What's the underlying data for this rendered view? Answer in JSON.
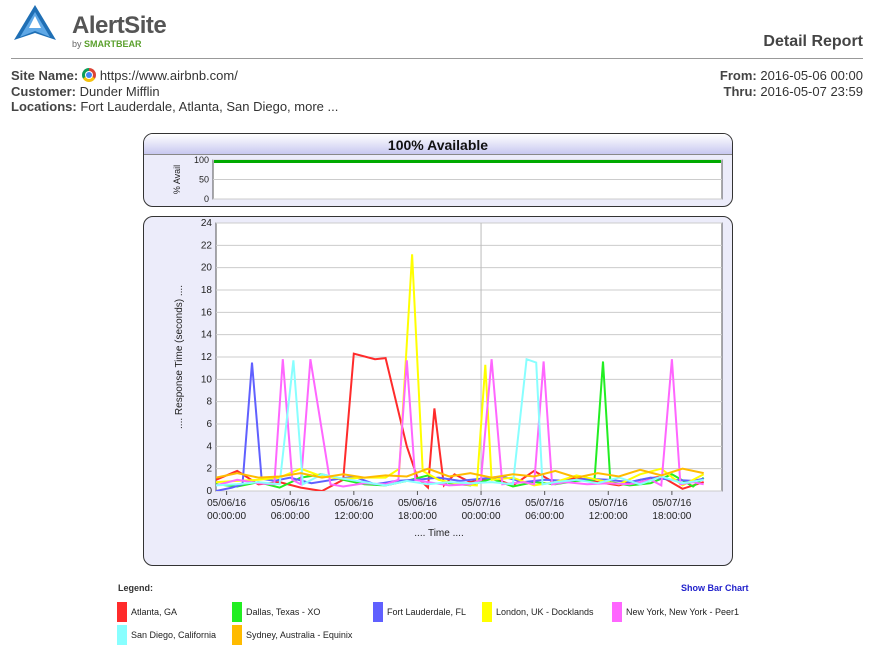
{
  "logo": {
    "brand": "AlertSite",
    "by_prefix": "by ",
    "by_name": "SMARTBEAR"
  },
  "report_title": "Detail Report",
  "site": {
    "site_label": "Site Name:",
    "site_value": "https://www.airbnb.com/",
    "customer_label": "Customer:",
    "customer_value": "Dunder Mifflin",
    "locations_label": "Locations:",
    "locations_value": "Fort Lauderdale, Atlanta, San Diego, more ..."
  },
  "period": {
    "from_label": "From:",
    "from_value": "2016-05-06 00:00",
    "thru_label": "Thru:",
    "thru_value": "2016-05-07 23:59"
  },
  "colors": {
    "accent": "#2222cc",
    "availability": "#00aa00"
  },
  "legend": {
    "title": "Legend:",
    "show_bar_chart": "Show Bar Chart"
  },
  "chart_data": [
    {
      "type": "area",
      "title": "100% Available",
      "ylabel": "% Avail",
      "yticks": [
        0,
        50,
        100
      ],
      "ylim": [
        0,
        100
      ],
      "series": [
        {
          "values": [
            100,
            100
          ]
        }
      ]
    },
    {
      "type": "line",
      "xlabel": ".... Time ....",
      "ylabel": ".... Response Time (seconds) ....",
      "ylim": [
        0,
        24
      ],
      "yticks": [
        0,
        2,
        4,
        6,
        8,
        10,
        12,
        14,
        16,
        18,
        20,
        22,
        24
      ],
      "xlim": [
        -1,
        41
      ],
      "xticks": [
        {
          "x": 0,
          "label": "05/06/16",
          "sub": "00:00:00"
        },
        {
          "x": 6,
          "label": "05/06/16",
          "sub": "06:00:00"
        },
        {
          "x": 12,
          "label": "05/06/16",
          "sub": "12:00:00"
        },
        {
          "x": 18,
          "label": "05/06/16",
          "sub": "18:00:00"
        },
        {
          "x": 24,
          "label": "05/07/16",
          "sub": "00:00:00"
        },
        {
          "x": 30,
          "label": "05/07/16",
          "sub": "06:00:00"
        },
        {
          "x": 36,
          "label": "05/07/16",
          "sub": "12:00:00"
        },
        {
          "x": 42,
          "label": "05/07/16",
          "sub": "18:00:00"
        }
      ],
      "grid": true,
      "legend_position": "bottom",
      "series": [
        {
          "name": "Atlanta, GA",
          "color": "#ff2b2b",
          "points": [
            [
              -1,
              1
            ],
            [
              1,
              1.8
            ],
            [
              3,
              0.6
            ],
            [
              5,
              0.8
            ],
            [
              7,
              0.3
            ],
            [
              9,
              0
            ],
            [
              11,
              1
            ],
            [
              12,
              12.3
            ],
            [
              14,
              11.8
            ],
            [
              15,
              11.9
            ],
            [
              17,
              4
            ],
            [
              18,
              1.2
            ],
            [
              19,
              0.3
            ],
            [
              19.6,
              7.4
            ],
            [
              20.5,
              0.5
            ],
            [
              21.5,
              1.5
            ],
            [
              23,
              0.8
            ],
            [
              25,
              1.2
            ],
            [
              27,
              0.5
            ],
            [
              29,
              1.8
            ],
            [
              31,
              0.7
            ],
            [
              33,
              1.2
            ],
            [
              35,
              0.8
            ],
            [
              37,
              0.5
            ],
            [
              39,
              1
            ],
            [
              41,
              1.3
            ],
            [
              43,
              0.2
            ],
            [
              45,
              0.8
            ]
          ]
        },
        {
          "name": "Dallas, Texas - XO",
          "color": "#22ee22",
          "points": [
            [
              -1,
              0.6
            ],
            [
              1,
              0.4
            ],
            [
              3,
              0.8
            ],
            [
              5,
              0.3
            ],
            [
              7,
              1.2
            ],
            [
              9,
              1.5
            ],
            [
              11,
              1
            ],
            [
              13,
              0.6
            ],
            [
              15,
              0.5
            ],
            [
              17,
              0.9
            ],
            [
              19,
              1.4
            ],
            [
              21,
              0.7
            ],
            [
              23,
              0.5
            ],
            [
              25,
              1.1
            ],
            [
              27,
              0.4
            ],
            [
              29,
              0.8
            ],
            [
              31,
              0.6
            ],
            [
              33,
              0.9
            ],
            [
              34.7,
              1
            ],
            [
              35.5,
              11.6
            ],
            [
              36.2,
              0.8
            ],
            [
              38,
              0.5
            ],
            [
              40,
              0.7
            ],
            [
              42,
              1.5
            ],
            [
              44,
              0.4
            ],
            [
              45,
              1.2
            ]
          ]
        },
        {
          "name": "Fort Lauderdale, FL",
          "color": "#6060ff",
          "points": [
            [
              -1,
              0
            ],
            [
              0.5,
              0.3
            ],
            [
              1.5,
              0.6
            ],
            [
              2.4,
              11.5
            ],
            [
              3.3,
              1.1
            ],
            [
              4.5,
              0.9
            ],
            [
              6,
              1.2
            ],
            [
              8,
              0.7
            ],
            [
              10,
              1
            ],
            [
              12,
              1.3
            ],
            [
              14,
              0.6
            ],
            [
              16,
              0.9
            ],
            [
              18,
              1
            ],
            [
              20,
              1.2
            ],
            [
              22,
              0.9
            ],
            [
              24,
              1.1
            ],
            [
              26,
              1.3
            ],
            [
              28,
              0.8
            ],
            [
              30,
              1
            ],
            [
              32,
              0.9
            ],
            [
              34,
              1.1
            ],
            [
              36,
              1
            ],
            [
              38,
              0.8
            ],
            [
              40,
              1.2
            ],
            [
              42,
              1
            ],
            [
              44,
              0.9
            ],
            [
              45,
              1.1
            ]
          ]
        },
        {
          "name": "London, UK - Docklands",
          "color": "#ffff00",
          "points": [
            [
              -1,
              0.8
            ],
            [
              1,
              0.9
            ],
            [
              3,
              1
            ],
            [
              5,
              1.2
            ],
            [
              7,
              2
            ],
            [
              9,
              1.3
            ],
            [
              11,
              1.1
            ],
            [
              13,
              1.2
            ],
            [
              15,
              1.2
            ],
            [
              16.3,
              2
            ],
            [
              17.5,
              21.2
            ],
            [
              18.5,
              1.8
            ],
            [
              20,
              1
            ],
            [
              22,
              0.6
            ],
            [
              23.6,
              0.5
            ],
            [
              24.4,
              11.3
            ],
            [
              25,
              1
            ],
            [
              27,
              1.2
            ],
            [
              29,
              0.5
            ],
            [
              31,
              0.8
            ],
            [
              33,
              1.4
            ],
            [
              35,
              1
            ],
            [
              37,
              0.6
            ],
            [
              39,
              1.5
            ],
            [
              41,
              2
            ],
            [
              43,
              0.5
            ],
            [
              45,
              1.5
            ]
          ]
        },
        {
          "name": "New York, New York - Peer1",
          "color": "#ff66ff",
          "points": [
            [
              -1,
              0.5
            ],
            [
              1,
              1
            ],
            [
              3,
              0.7
            ],
            [
              4.5,
              0.6
            ],
            [
              5.3,
              11.8
            ],
            [
              6.2,
              1
            ],
            [
              7,
              0.6
            ],
            [
              7.9,
              11.8
            ],
            [
              9.8,
              0.6
            ],
            [
              11,
              0.4
            ],
            [
              13,
              0.7
            ],
            [
              15,
              0.6
            ],
            [
              16.2,
              1
            ],
            [
              17,
              11.7
            ],
            [
              17.8,
              1
            ],
            [
              19,
              0.8
            ],
            [
              21,
              0.5
            ],
            [
              23,
              0.6
            ],
            [
              24,
              1
            ],
            [
              25,
              11.8
            ],
            [
              26,
              0.6
            ],
            [
              28,
              0.8
            ],
            [
              29,
              0.6
            ],
            [
              29.9,
              11.6
            ],
            [
              30.7,
              0.6
            ],
            [
              32,
              0.8
            ],
            [
              34,
              0.6
            ],
            [
              36,
              0.7
            ],
            [
              38,
              0.6
            ],
            [
              40,
              1
            ],
            [
              41,
              0.5
            ],
            [
              42,
              11.8
            ],
            [
              42.8,
              0.6
            ],
            [
              44,
              0.8
            ],
            [
              45,
              0.6
            ]
          ]
        },
        {
          "name": "San Diego, California",
          "color": "#88ffff",
          "points": [
            [
              -1,
              0.5
            ],
            [
              1,
              0.6
            ],
            [
              3,
              0.8
            ],
            [
              5,
              0.6
            ],
            [
              6.3,
              11.7
            ],
            [
              7.2,
              0.6
            ],
            [
              9,
              1.5
            ],
            [
              11,
              1.1
            ],
            [
              13,
              0.8
            ],
            [
              15,
              0.5
            ],
            [
              17,
              0.9
            ],
            [
              19,
              0.6
            ],
            [
              21,
              0.8
            ],
            [
              23,
              0.7
            ],
            [
              25,
              0.8
            ],
            [
              27,
              0.6
            ],
            [
              28.3,
              11.8
            ],
            [
              29.2,
              11.5
            ],
            [
              29.8,
              0.6
            ],
            [
              31,
              0.8
            ],
            [
              33,
              1
            ],
            [
              35,
              0.7
            ],
            [
              37,
              1.2
            ],
            [
              39,
              0.6
            ],
            [
              41,
              1.3
            ],
            [
              43,
              0.7
            ],
            [
              45,
              1
            ]
          ]
        },
        {
          "name": "Sydney, Australia - Equinix",
          "color": "#ffbb00",
          "points": [
            [
              -1,
              1.2
            ],
            [
              1,
              1.6
            ],
            [
              3,
              1.2
            ],
            [
              5,
              1.3
            ],
            [
              7,
              1.6
            ],
            [
              9,
              1.2
            ],
            [
              11,
              1.5
            ],
            [
              13,
              1.2
            ],
            [
              15,
              1.4
            ],
            [
              17,
              1.3
            ],
            [
              19,
              2
            ],
            [
              21,
              1.3
            ],
            [
              23,
              1.6
            ],
            [
              25,
              1.2
            ],
            [
              27,
              1.5
            ],
            [
              29,
              1.3
            ],
            [
              31,
              1.8
            ],
            [
              33,
              1.2
            ],
            [
              35,
              1.6
            ],
            [
              37,
              1.3
            ],
            [
              39,
              1.9
            ],
            [
              41,
              1.4
            ],
            [
              43,
              2
            ],
            [
              45,
              1.6
            ]
          ]
        }
      ]
    }
  ]
}
